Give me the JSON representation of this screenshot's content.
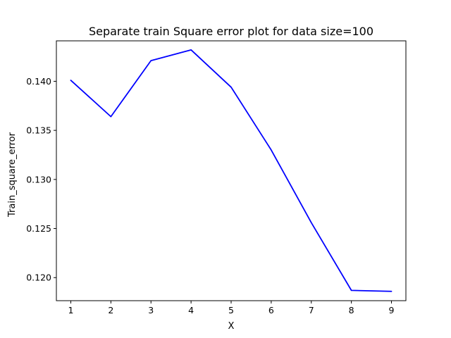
{
  "chart_data": {
    "type": "line",
    "title": "Separate train Square error plot for data size=100",
    "xlabel": "X",
    "ylabel": "Train_square_error",
    "x": [
      1,
      2,
      3,
      4,
      5,
      6,
      7,
      8,
      9
    ],
    "series": [
      {
        "values": [
          0.1401,
          0.1364,
          0.1421,
          0.1432,
          0.1394,
          0.133,
          0.1256,
          0.1187,
          0.1186
        ],
        "color": "#0000ff"
      }
    ],
    "xlim": [
      0.64,
      9.36
    ],
    "ylim": [
      0.11765,
      0.14412
    ],
    "xticks": [
      "1",
      "2",
      "3",
      "4",
      "5",
      "6",
      "7",
      "8",
      "9"
    ],
    "yticks": [
      "0.120",
      "0.125",
      "0.130",
      "0.135",
      "0.140"
    ],
    "grid": false
  }
}
